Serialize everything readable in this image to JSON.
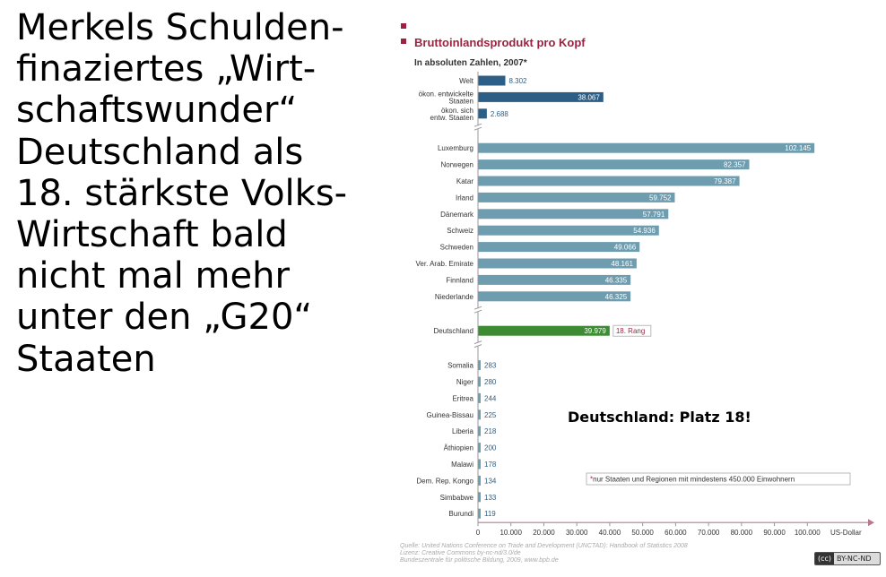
{
  "headline": {
    "lines": [
      "Merkels Schulden-",
      "finaziertes „Wirt-",
      "schaftswunder“",
      "Deutschland als",
      "18. stärkste Volks-",
      "Wirtschaft bald",
      "nicht mal mehr",
      "unter den „G20“",
      "Staaten"
    ]
  },
  "callout": "Deutschland: Platz 18!",
  "badge": {
    "mark": "(cc)",
    "text": "BY-NC-ND"
  },
  "chart_data": {
    "type": "bar",
    "orientation": "horizontal",
    "title": "Bruttoinlandsprodukt pro Kopf",
    "subtitle": "In absoluten Zahlen, 2007*",
    "xlabel": "US-Dollar",
    "xlim": [
      0,
      115000
    ],
    "xticks": [
      0,
      10000,
      20000,
      30000,
      40000,
      50000,
      60000,
      70000,
      80000,
      90000,
      100000
    ],
    "xtick_labels": [
      "0",
      "10.000",
      "20.000",
      "30.000",
      "40.000",
      "50.000",
      "60.000",
      "70.000",
      "80.000",
      "90.000",
      "100.000"
    ],
    "colors": {
      "aggregate": "#2d5f86",
      "country": "#6f9db0",
      "highlight": "#3d8c34",
      "accent": "#9b2240",
      "text": "#333333"
    },
    "groups": [
      {
        "kind": "aggregate",
        "items": [
          {
            "label": [
              "Welt"
            ],
            "value": 8302,
            "value_label": "8.302"
          },
          {
            "label": [
              "ökon. entwickelte",
              "Staaten"
            ],
            "value": 38067,
            "value_label": "38.067"
          },
          {
            "label": [
              "ökon. sich",
              "entw. Staaten"
            ],
            "value": 2688,
            "value_label": "2.688"
          }
        ]
      },
      {
        "kind": "country",
        "items": [
          {
            "label": [
              "Luxemburg"
            ],
            "value": 102145,
            "value_label": "102.145"
          },
          {
            "label": [
              "Norwegen"
            ],
            "value": 82357,
            "value_label": "82.357"
          },
          {
            "label": [
              "Katar"
            ],
            "value": 79387,
            "value_label": "79.387"
          },
          {
            "label": [
              "Irland"
            ],
            "value": 59752,
            "value_label": "59.752"
          },
          {
            "label": [
              "Dänemark"
            ],
            "value": 57791,
            "value_label": "57.791"
          },
          {
            "label": [
              "Schweiz"
            ],
            "value": 54936,
            "value_label": "54.936"
          },
          {
            "label": [
              "Schweden"
            ],
            "value": 49066,
            "value_label": "49.066"
          },
          {
            "label": [
              "Ver. Arab. Emirate"
            ],
            "value": 48161,
            "value_label": "48.161"
          },
          {
            "label": [
              "Finnland"
            ],
            "value": 46335,
            "value_label": "46.335"
          },
          {
            "label": [
              "Niederlande"
            ],
            "value": 46325,
            "value_label": "46.325"
          }
        ]
      },
      {
        "kind": "highlight",
        "items": [
          {
            "label": [
              "Deutschland"
            ],
            "value": 39979,
            "value_label": "39.979",
            "rank_label": "18. Rang"
          }
        ]
      },
      {
        "kind": "country",
        "items": [
          {
            "label": [
              "Somalia"
            ],
            "value": 283,
            "value_label": "283"
          },
          {
            "label": [
              "Niger"
            ],
            "value": 280,
            "value_label": "280"
          },
          {
            "label": [
              "Eritrea"
            ],
            "value": 244,
            "value_label": "244"
          },
          {
            "label": [
              "Guinea-Bissau"
            ],
            "value": 225,
            "value_label": "225"
          },
          {
            "label": [
              "Liberia"
            ],
            "value": 218,
            "value_label": "218"
          },
          {
            "label": [
              "Äthiopien"
            ],
            "value": 200,
            "value_label": "200"
          },
          {
            "label": [
              "Malawi"
            ],
            "value": 178,
            "value_label": "178"
          },
          {
            "label": [
              "Dem. Rep. Kongo"
            ],
            "value": 134,
            "value_label": "134"
          },
          {
            "label": [
              "Simbabwe"
            ],
            "value": 133,
            "value_label": "133"
          },
          {
            "label": [
              "Burundi"
            ],
            "value": 119,
            "value_label": "119"
          }
        ]
      }
    ],
    "footnote": "*nur Staaten und Regionen mit mindestens 450.000 Einwohnern",
    "source": [
      "Quelle: United Nations Conference on Trade and Development (UNCTAD): Handbook of Statistics 2008",
      "Lizenz: Creative Commons  by-nc-nd/3.0/de",
      "Bundeszentrale für politische Bildung, 2009, www.bpb.de"
    ]
  }
}
